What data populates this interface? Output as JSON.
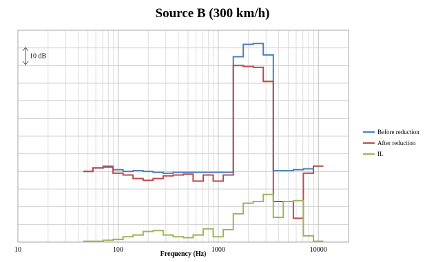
{
  "chart_data": {
    "type": "line",
    "title": "Source B (300 km/h)",
    "xlabel": "Frequency (Hz)",
    "ylabel": "",
    "x_scale": "log",
    "xlim": [
      10,
      20000
    ],
    "x_ticks": [
      10,
      100,
      1000,
      10000
    ],
    "x_tick_labels": [
      "10",
      "100",
      "1000",
      "10000"
    ],
    "ylim": [
      0,
      12
    ],
    "y_tick_labels_visible": false,
    "grid": true,
    "legend_position": "right",
    "annotation": {
      "text": "10 dB",
      "span_divisions": 1
    },
    "band_edges": [
      45,
      56,
      71,
      89,
      112,
      141,
      178,
      224,
      282,
      355,
      447,
      562,
      708,
      891,
      1122,
      1413,
      1778,
      2239,
      2818,
      3548,
      4467,
      5623,
      7079,
      8913,
      11220
    ],
    "series": [
      {
        "name": "Before reduction",
        "color": "#4a7ebb",
        "values": [
          4.0,
          4.2,
          4.3,
          4.1,
          4.0,
          4.05,
          4.0,
          3.95,
          3.9,
          3.95,
          3.95,
          3.95,
          3.95,
          3.95,
          3.95,
          10.5,
          11.2,
          11.25,
          10.6,
          4.05,
          4.05,
          4.1,
          4.15,
          4.3
        ]
      },
      {
        "name": "After reduction",
        "color": "#be4b48",
        "values": [
          4.0,
          4.2,
          4.25,
          3.9,
          3.8,
          3.6,
          3.5,
          3.6,
          3.75,
          3.8,
          3.85,
          3.45,
          3.8,
          3.45,
          3.8,
          10.0,
          9.95,
          9.9,
          9.1,
          2.3,
          2.3,
          1.35,
          3.9,
          4.3
        ]
      },
      {
        "name": "IL",
        "color": "#98b954",
        "values": [
          0.05,
          0.05,
          0.1,
          0.15,
          0.3,
          0.4,
          0.6,
          0.65,
          0.4,
          0.3,
          0.25,
          0.4,
          0.75,
          0.3,
          0.7,
          1.6,
          2.2,
          2.3,
          2.7,
          1.4,
          2.3,
          2.35,
          0.35,
          0.05
        ]
      }
    ]
  }
}
